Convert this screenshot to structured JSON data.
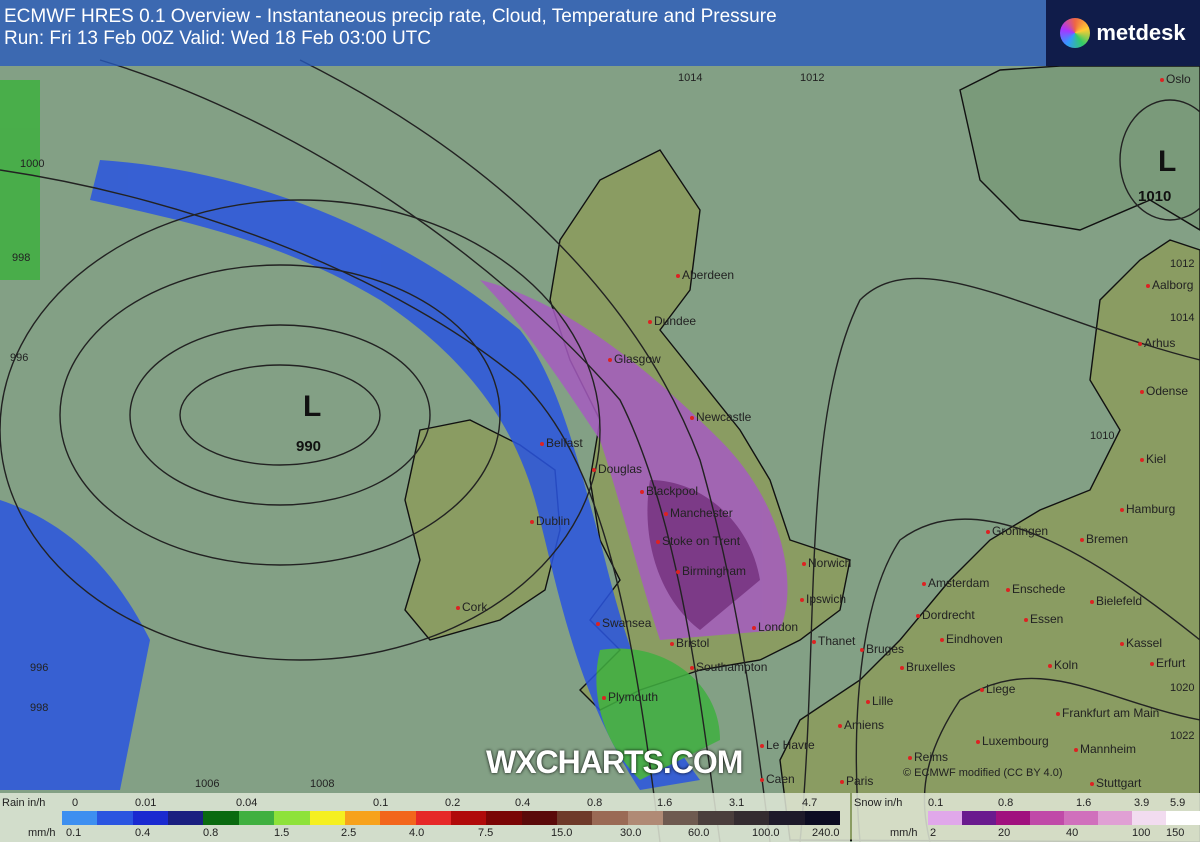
{
  "header": {
    "title": "ECMWF HRES 0.1 Overview - Instantaneous precip rate, Cloud, Temperature and Pressure",
    "subtitle": "Run: Fri 13 Feb 00Z Valid: Wed 18 Feb 03:00 UTC"
  },
  "logo": {
    "text": "metdesk"
  },
  "watermark": "WXCHARTS.COM",
  "credit": "© ECMWF  modified (CC BY 4.0)",
  "pressure_systems": [
    {
      "symbol": "L",
      "value": "990"
    },
    {
      "symbol": "L",
      "value": "1010"
    }
  ],
  "isobar_labels": [
    "1000",
    "998",
    "996",
    "996",
    "998",
    "1014",
    "1012",
    "1006",
    "1008",
    "1012",
    "1014",
    "1020",
    "1022",
    "1010"
  ],
  "cities": [
    "Oslo",
    "Aalborg",
    "Arhus",
    "Odense",
    "Kiel",
    "Hamburg",
    "Bremen",
    "Groningen",
    "Amsterdam",
    "Enschede",
    "Bielefeld",
    "Dordrecht",
    "Eindhoven",
    "Essen",
    "Kassel",
    "Erfurt",
    "Bruges",
    "Bruxelles",
    "Koln",
    "Lille",
    "Liege",
    "Frankfurt am Main",
    "Amiens",
    "Luxembourg",
    "Mannheim",
    "Reims",
    "Paris",
    "Stuttgart",
    "Le Havre",
    "Caen",
    "Aberdeen",
    "Dundee",
    "Glasgow",
    "Newcastle",
    "Belfast",
    "Douglas",
    "Blackpool",
    "Manchester",
    "Dublin",
    "Stoke on Trent",
    "Birmingham",
    "Norwich",
    "Ipswich",
    "Cork",
    "Swansea",
    "Bristol",
    "London",
    "Thanet",
    "Southampton",
    "Plymouth"
  ],
  "legend": {
    "rain": {
      "label_top": "Rain in/h",
      "label_bottom": "mm/h",
      "in_h": [
        "0",
        "0.01",
        "0.04",
        "0.1",
        "0.2",
        "0.4",
        "0.8",
        "1.6",
        "3.1",
        "4.7"
      ],
      "mm_h": [
        "0.1",
        "0.4",
        "0.8",
        "1.5",
        "2.5",
        "4.0",
        "7.5",
        "15.0",
        "30.0",
        "60.0",
        "100.0",
        "240.0"
      ],
      "colors": [
        "#3d8ff0",
        "#2a55e0",
        "#1a2ad0",
        "#1a1f80",
        "#0a6a10",
        "#40b040",
        "#8ee23a",
        "#f5f020",
        "#f7a21c",
        "#f2661c",
        "#e62828",
        "#b00a0a",
        "#7a0505",
        "#5a0a0a",
        "#6e3a2a",
        "#9a6a55",
        "#b08a75",
        "#6e5a50",
        "#4a3e3c",
        "#342c30",
        "#1e1a2a",
        "#0c0c22"
      ]
    },
    "snow": {
      "label_top": "Snow in/h",
      "label_bottom": "mm/h",
      "in_h": [
        "0.1",
        "0.8",
        "1.6",
        "3.9",
        "5.9"
      ],
      "mm_h": [
        "2",
        "20",
        "40",
        "100",
        "150"
      ],
      "colors": [
        "#e0a8ea",
        "#6a1a8e",
        "#a0107e",
        "#c04aa8",
        "#d070bc",
        "#e0a0d4",
        "#f2dcf0",
        "#ffffff"
      ]
    }
  }
}
